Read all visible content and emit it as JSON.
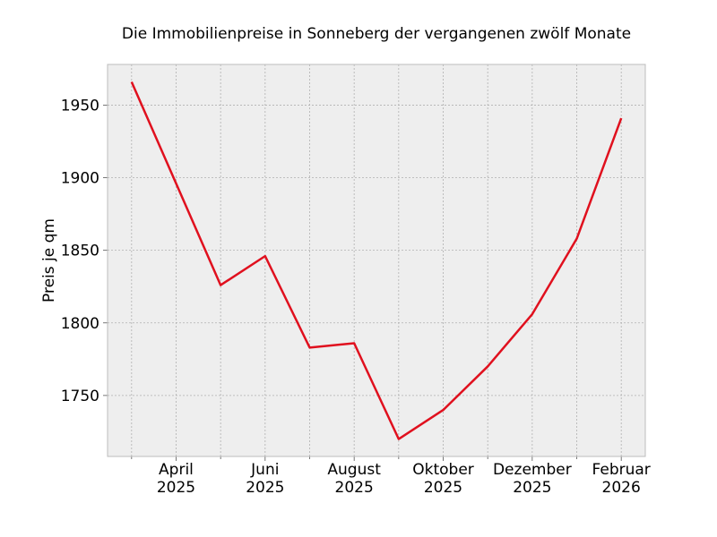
{
  "chart_data": {
    "type": "line",
    "title": "Die Immobilienpreise in Sonneberg der vergangenen zwölf Monate",
    "xlabel": "",
    "ylabel": "Preis je qm",
    "x": [
      "2025-03",
      "2025-04",
      "2025-05",
      "2025-06",
      "2025-07",
      "2025-08",
      "2025-09",
      "2025-10",
      "2025-11",
      "2025-12",
      "2026-01",
      "2026-02"
    ],
    "series": [
      {
        "name": "Preis je qm",
        "color": "#e0101e",
        "values": [
          1966,
          1896,
          1826,
          1846,
          1783,
          1786,
          1720,
          1740,
          1770,
          1806,
          1858,
          1941
        ]
      }
    ],
    "ylim": [
      1708,
      1978
    ],
    "yticks": [
      1750,
      1800,
      1850,
      1900,
      1950
    ],
    "xticks": [
      {
        "index": 1,
        "label": [
          "April",
          "2025"
        ]
      },
      {
        "index": 3,
        "label": [
          "Juni",
          "2025"
        ]
      },
      {
        "index": 5,
        "label": [
          "August",
          "2025"
        ]
      },
      {
        "index": 7,
        "label": [
          "Oktober",
          "2025"
        ]
      },
      {
        "index": 9,
        "label": [
          "Dezember",
          "2025"
        ]
      },
      {
        "index": 11,
        "label": [
          "Februar",
          "2026"
        ]
      }
    ],
    "grid": true,
    "background": "#eeeeee"
  }
}
